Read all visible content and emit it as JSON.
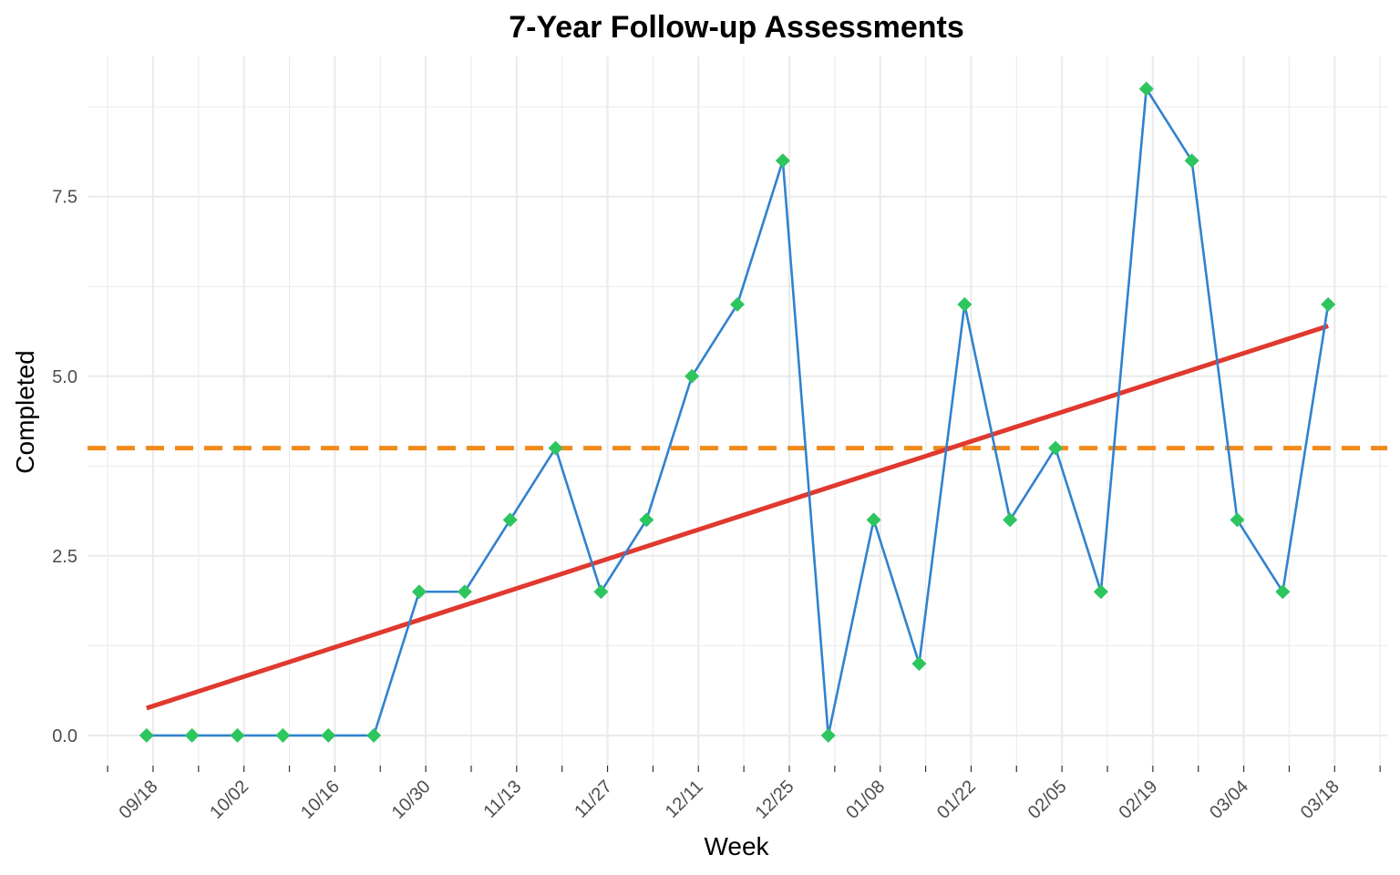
{
  "chart_data": {
    "type": "line",
    "title": "7-Year Follow-up Assessments",
    "xlabel": "Week",
    "ylabel": "Completed",
    "x": [
      "09/17",
      "09/24",
      "10/01",
      "10/08",
      "10/15",
      "10/22",
      "10/29",
      "11/05",
      "11/12",
      "11/19",
      "11/26",
      "12/03",
      "12/10",
      "12/17",
      "12/24",
      "12/31",
      "01/07",
      "01/14",
      "01/21",
      "01/28",
      "02/04",
      "02/11",
      "02/18",
      "02/25",
      "03/03",
      "03/10",
      "03/17"
    ],
    "series": [
      {
        "values": [
          0,
          0,
          0,
          0,
          0,
          0,
          2,
          2,
          3,
          4,
          2,
          3,
          5,
          6,
          8,
          0,
          3,
          1,
          6,
          3,
          4,
          2,
          9,
          8,
          3,
          2,
          6
        ]
      }
    ],
    "trend_line": {
      "start": 0.38,
      "end": 5.7
    },
    "reference_line": {
      "y": 4
    },
    "x_ticks": [
      "09/18",
      "10/02",
      "10/16",
      "10/30",
      "11/13",
      "11/27",
      "12/11",
      "12/25",
      "01/08",
      "01/22",
      "02/05",
      "02/19",
      "03/04",
      "03/18"
    ],
    "y_ticks": [
      "0.0",
      "2.5",
      "5.0",
      "7.5"
    ],
    "ylim": [
      -0.42,
      9.45
    ],
    "grid": true,
    "colors": {
      "line": "#3182ce",
      "points": "#2dc55e",
      "trend": "#e0392f",
      "reference": "#f08a1b",
      "grid": "#ebebeb",
      "tick_text": "#4d4d4d"
    }
  }
}
